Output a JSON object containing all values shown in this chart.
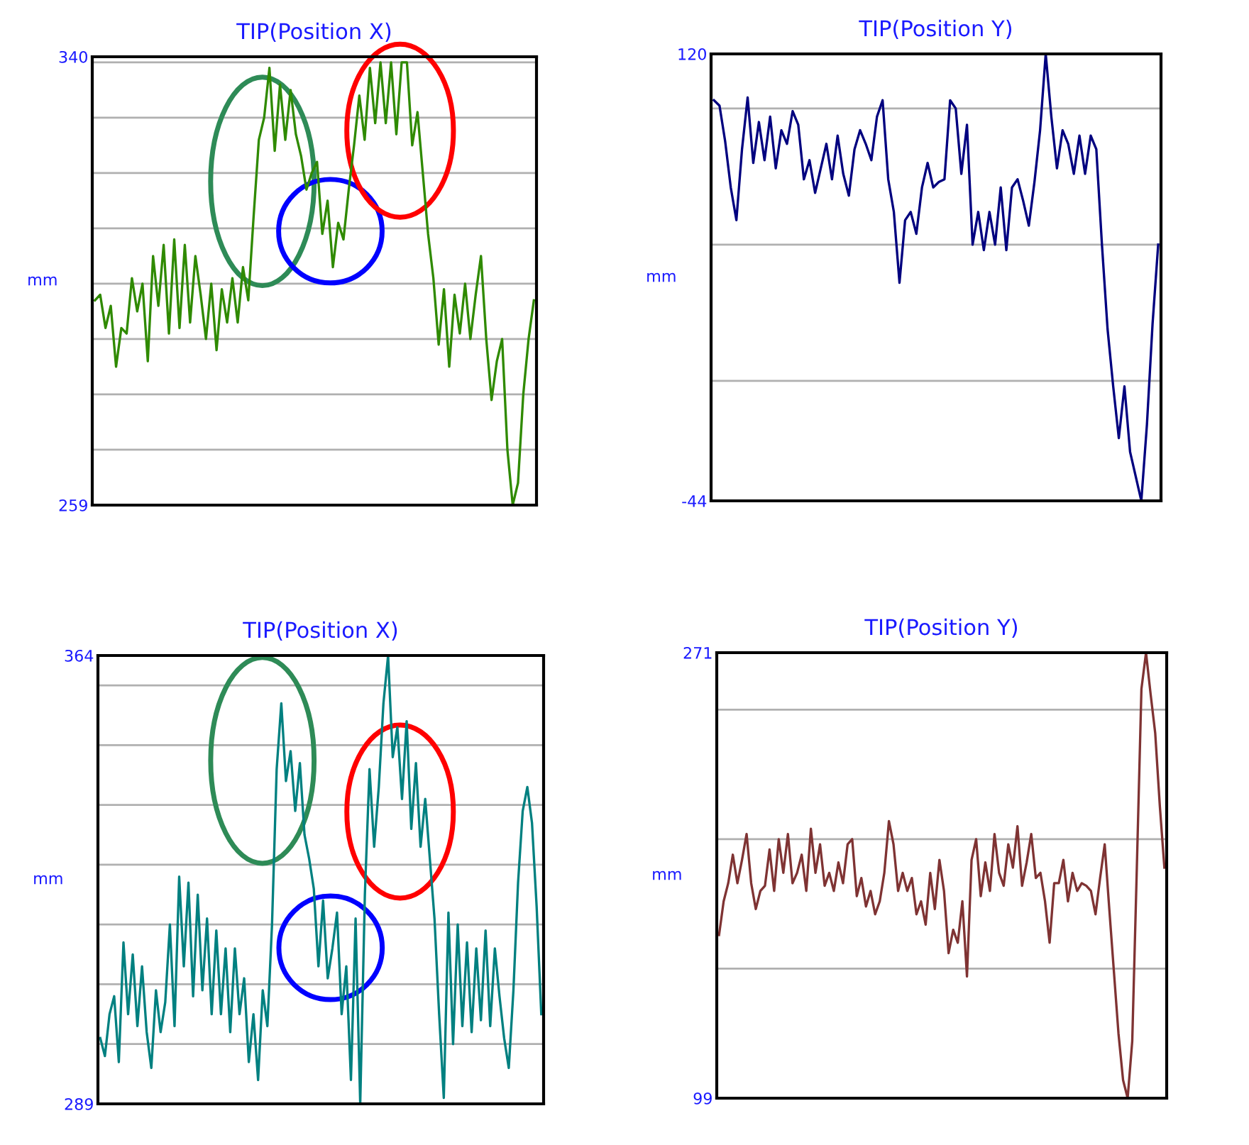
{
  "chart_data": [
    {
      "type": "line",
      "title": "TIP(Position X)",
      "ylabel": "mm",
      "grid": "y",
      "tick_labels": "y",
      "marker": "none",
      "line_style": "solid",
      "legend": false,
      "categories": [
        null,
        null,
        null,
        null,
        null,
        null,
        null,
        null,
        null,
        null,
        null,
        null,
        null,
        null,
        null,
        null,
        null,
        null,
        null,
        null,
        null,
        null,
        null,
        null,
        null,
        null,
        null,
        null,
        null,
        null,
        null,
        null,
        null,
        null,
        null,
        null,
        null,
        null,
        null,
        null,
        null,
        null,
        null,
        null,
        null,
        null,
        null,
        null,
        null,
        null,
        null,
        null,
        null,
        null,
        null,
        null,
        null,
        null,
        null,
        null,
        null,
        null,
        null,
        null,
        null,
        null,
        null,
        null,
        null,
        null,
        null,
        null,
        null,
        null,
        null,
        null,
        null,
        null,
        null,
        null,
        null,
        null,
        null,
        null
      ],
      "series": [
        {
          "color": "#2f8a00",
          "values": [
            296,
            297,
            291,
            295,
            284,
            291,
            290,
            300,
            294,
            299,
            285,
            304,
            295,
            306,
            290,
            307,
            291,
            306,
            292,
            304,
            297,
            289,
            299,
            287,
            298,
            292,
            300,
            292,
            302,
            296,
            311,
            325,
            329,
            338,
            323,
            335,
            325,
            334,
            326,
            322,
            316,
            319,
            321,
            308,
            314,
            302,
            310,
            307,
            316,
            324,
            333,
            325,
            338,
            328,
            339,
            328,
            339,
            326,
            339,
            339,
            324,
            330,
            319,
            308,
            300,
            288,
            298,
            284,
            297,
            290,
            299,
            289,
            297,
            304,
            289,
            278,
            285,
            289,
            269,
            259,
            263,
            279,
            289,
            296
          ]
        }
      ],
      "ylim": [
        259,
        340
      ],
      "yticks": [
        259,
        {
          "value": 269,
          "label": null
        },
        {
          "value": 279,
          "label": null
        },
        {
          "value": 289,
          "label": null
        },
        {
          "value": 299,
          "label": null
        },
        {
          "value": 309,
          "label": null
        },
        {
          "value": 319,
          "label": null
        },
        {
          "value": 329,
          "label": null
        },
        {
          "value": 339,
          "label": null
        },
        340
      ]
    },
    {
      "type": "line",
      "title": "TIP(Position Y)",
      "ylabel": "mm",
      "grid": "y",
      "tick_labels": "y",
      "marker": "none",
      "line_style": "solid",
      "legend": false,
      "categories": [
        null,
        null,
        null,
        null,
        null,
        null,
        null,
        null,
        null,
        null,
        null,
        null,
        null,
        null,
        null,
        null,
        null,
        null,
        null,
        null,
        null,
        null,
        null,
        null,
        null,
        null,
        null,
        null,
        null,
        null,
        null,
        null,
        null,
        null,
        null,
        null,
        null,
        null,
        null,
        null,
        null,
        null,
        null,
        null,
        null,
        null,
        null,
        null,
        null,
        null,
        null,
        null,
        null,
        null,
        null,
        null,
        null,
        null,
        null,
        null,
        null,
        null,
        null,
        null,
        null,
        null,
        null,
        null,
        null,
        null,
        null,
        null,
        null,
        null,
        null,
        null,
        null,
        null,
        null,
        null
      ],
      "series": [
        {
          "color": "#00007f",
          "values": [
            103,
            101,
            88,
            71,
            59,
            85,
            104,
            80,
            95,
            81,
            97,
            78,
            92,
            87,
            99,
            94,
            74,
            81,
            69,
            78,
            87,
            74,
            90,
            76,
            68,
            85,
            92,
            87,
            81,
            97,
            103,
            74,
            62,
            36,
            59,
            62,
            54,
            71,
            80,
            71,
            73,
            74,
            103,
            100,
            76,
            94,
            50,
            62,
            48,
            62,
            50,
            71,
            48,
            71,
            74,
            66,
            57,
            73,
            92,
            120,
            97,
            78,
            92,
            87,
            76,
            90,
            76,
            90,
            85,
            50,
            19,
            -2,
            -21,
            -2,
            -26,
            -35,
            -44,
            -16,
            21,
            50
          ]
        }
      ],
      "ylim": [
        -44,
        120
      ],
      "yticks": [
        -44,
        {
          "value": 0,
          "label": null
        },
        {
          "value": 50,
          "label": null
        },
        {
          "value": 100,
          "label": null
        },
        120
      ]
    },
    {
      "type": "line",
      "title": "TIP(Position X)",
      "ylabel": "mm",
      "grid": "y",
      "tick_labels": "y",
      "marker": "none",
      "line_style": "solid",
      "legend": false,
      "categories": [
        null,
        null,
        null,
        null,
        null,
        null,
        null,
        null,
        null,
        null,
        null,
        null,
        null,
        null,
        null,
        null,
        null,
        null,
        null,
        null,
        null,
        null,
        null,
        null,
        null,
        null,
        null,
        null,
        null,
        null,
        null,
        null,
        null,
        null,
        null,
        null,
        null,
        null,
        null,
        null,
        null,
        null,
        null,
        null,
        null,
        null,
        null,
        null,
        null,
        null,
        null,
        null,
        null,
        null,
        null,
        null,
        null,
        null,
        null,
        null,
        null,
        null,
        null,
        null,
        null,
        null,
        null,
        null,
        null,
        null,
        null,
        null,
        null,
        null,
        null,
        null,
        null,
        null,
        null,
        null,
        null,
        null,
        null,
        null,
        null,
        null,
        null,
        null,
        null,
        null,
        null,
        null,
        null,
        null,
        null,
        null
      ],
      "series": [
        {
          "color": "#008080",
          "values": [
            300,
            297,
            304,
            307,
            296,
            316,
            304,
            314,
            302,
            312,
            301,
            295,
            308,
            301,
            306,
            319,
            302,
            327,
            312,
            326,
            307,
            324,
            308,
            320,
            304,
            318,
            304,
            315,
            301,
            315,
            304,
            310,
            296,
            304,
            293,
            308,
            302,
            319,
            345,
            356,
            343,
            348,
            338,
            346,
            334,
            330,
            325,
            312,
            323,
            310,
            315,
            321,
            304,
            312,
            293,
            320,
            289,
            324,
            345,
            332,
            342,
            356,
            364,
            347,
            352,
            340,
            353,
            335,
            346,
            332,
            340,
            330,
            320,
            304,
            290,
            321,
            299,
            319,
            302,
            316,
            301,
            315,
            303,
            318,
            302,
            315,
            307,
            300,
            295,
            308,
            326,
            338,
            342,
            336,
            322,
            304
          ]
        }
      ],
      "ylim": [
        289,
        364
      ],
      "yticks": [
        289,
        {
          "value": 299,
          "label": null
        },
        {
          "value": 309,
          "label": null
        },
        {
          "value": 319,
          "label": null
        },
        {
          "value": 329,
          "label": null
        },
        {
          "value": 339,
          "label": null
        },
        {
          "value": 349,
          "label": null
        },
        {
          "value": 359,
          "label": null
        },
        364
      ]
    },
    {
      "type": "line",
      "title": "TIP(Position Y)",
      "ylabel": "mm",
      "grid": "y",
      "tick_labels": "y",
      "marker": "none",
      "line_style": "solid",
      "legend": false,
      "categories": [
        null,
        null,
        null,
        null,
        null,
        null,
        null,
        null,
        null,
        null,
        null,
        null,
        null,
        null,
        null,
        null,
        null,
        null,
        null,
        null,
        null,
        null,
        null,
        null,
        null,
        null,
        null,
        null,
        null,
        null,
        null,
        null,
        null,
        null,
        null,
        null,
        null,
        null,
        null,
        null,
        null,
        null,
        null,
        null,
        null,
        null,
        null,
        null,
        null,
        null,
        null,
        null,
        null,
        null,
        null,
        null,
        null,
        null,
        null,
        null,
        null,
        null,
        null,
        null,
        null,
        null,
        null,
        null,
        null,
        null,
        null,
        null,
        null,
        null,
        null,
        null,
        null,
        null,
        null,
        null,
        null,
        null,
        null,
        null,
        null,
        null,
        null,
        null,
        null,
        null,
        null,
        null,
        null,
        null,
        null,
        null,
        null,
        null
      ],
      "series": [
        {
          "color": "#7f3333",
          "values": [
            162,
            175,
            182,
            193,
            182,
            191,
            201,
            182,
            172,
            179,
            181,
            195,
            179,
            199,
            186,
            201,
            182,
            186,
            193,
            179,
            203,
            186,
            197,
            181,
            186,
            179,
            190,
            182,
            197,
            199,
            177,
            184,
            173,
            179,
            170,
            175,
            186,
            206,
            197,
            179,
            186,
            179,
            184,
            170,
            175,
            166,
            186,
            172,
            191,
            179,
            155,
            164,
            159,
            175,
            146,
            191,
            199,
            177,
            190,
            179,
            201,
            186,
            181,
            197,
            188,
            204,
            181,
            190,
            201,
            184,
            186,
            175,
            159,
            182,
            182,
            191,
            175,
            186,
            179,
            182,
            181,
            179,
            170,
            184,
            197,
            172,
            148,
            124,
            106,
            99,
            121,
            188,
            257,
            271,
            255,
            240,
            212,
            188
          ]
        }
      ],
      "ylim": [
        99,
        271
      ],
      "yticks": [
        99,
        {
          "value": 149,
          "label": null
        },
        {
          "value": 199,
          "label": null
        },
        {
          "value": 249,
          "label": null
        },
        271
      ]
    }
  ]
}
